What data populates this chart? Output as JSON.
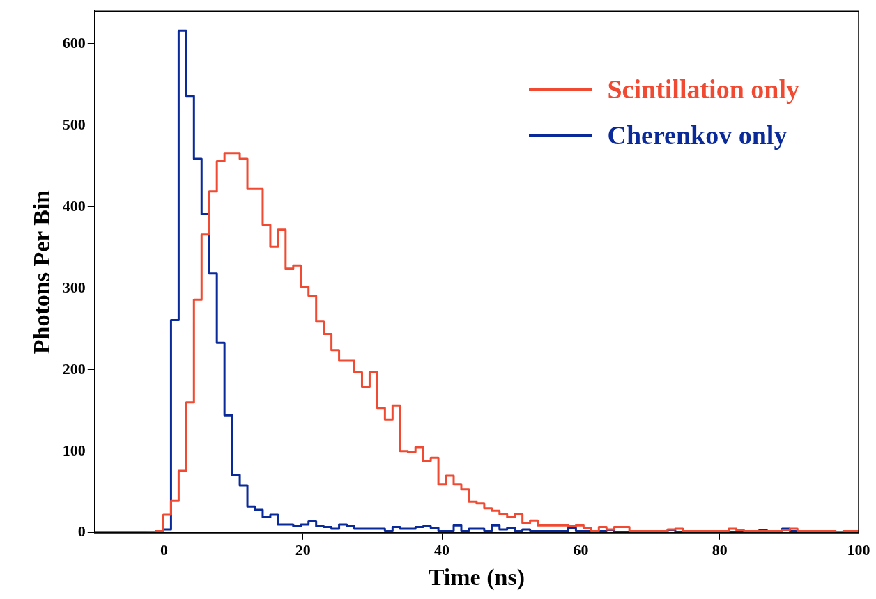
{
  "chart_data": {
    "type": "histogram",
    "xlabel": "Time (ns)",
    "ylabel": "Photons Per Bin",
    "bins": [
      -10,
      -8.9,
      -7.8,
      -6.7,
      -5.6,
      -4.5,
      -3.4,
      -2.3,
      -1.2,
      -0.1,
      1,
      2.1,
      3.2,
      4.3,
      5.4,
      6.5,
      7.6,
      8.7,
      9.8,
      10.9,
      12,
      13.1,
      14.2,
      15.3,
      16.4,
      17.5,
      18.6,
      19.7,
      20.8,
      21.9,
      23,
      24.1,
      25.2,
      26.3,
      27.4,
      28.5,
      29.6,
      30.7,
      31.8,
      32.9,
      34,
      35.1,
      36.2,
      37.3,
      38.4,
      39.5,
      40.6,
      41.7,
      42.8,
      43.9,
      45,
      46.1,
      47.2,
      48.3,
      49.4,
      50.5,
      51.6,
      52.7,
      53.8,
      54.9,
      56,
      57.1,
      58.2,
      59.3,
      60.4,
      61.5,
      62.6,
      63.7,
      64.8,
      65.9,
      67,
      68.1,
      69.2,
      70.3,
      71.4,
      72.5,
      73.6,
      74.7,
      75.8,
      76.9,
      78,
      79.1,
      80.2,
      81.3,
      82.4,
      83.5,
      84.6,
      85.7,
      86.8,
      87.9,
      89,
      90.1,
      91.2,
      92.3,
      93.4,
      94.5,
      95.6,
      96.7,
      97.8,
      98.9,
      100
    ],
    "series": [
      {
        "name": "Scintillation only",
        "color": "#f04b32",
        "values": [
          0,
          0,
          0,
          0,
          0,
          0,
          0,
          1,
          2,
          22,
          39,
          76,
          160,
          286,
          366,
          419,
          456,
          466,
          466,
          459,
          422,
          422,
          378,
          351,
          372,
          324,
          328,
          302,
          291,
          259,
          244,
          224,
          211,
          211,
          197,
          179,
          197,
          153,
          139,
          156,
          100,
          99,
          105,
          88,
          92,
          59,
          70,
          59,
          53,
          38,
          36,
          30,
          27,
          23,
          19,
          23,
          12,
          15,
          9,
          9,
          9,
          9,
          8,
          9,
          6,
          2,
          7,
          4,
          7,
          7,
          2,
          2,
          2,
          2,
          2,
          4,
          5,
          2,
          2,
          2,
          2,
          2,
          2,
          5,
          3,
          2,
          2,
          2,
          2,
          2,
          3,
          5,
          2,
          2,
          2,
          2,
          2,
          1,
          2,
          2
        ]
      },
      {
        "name": "Cherenkov only",
        "color": "#0b2a99",
        "values": [
          0,
          0,
          0,
          0,
          0,
          0,
          0,
          0,
          2,
          4,
          261,
          616,
          536,
          459,
          391,
          318,
          233,
          144,
          71,
          58,
          32,
          28,
          19,
          22,
          10,
          10,
          8,
          10,
          14,
          8,
          7,
          5,
          10,
          8,
          5,
          5,
          5,
          5,
          2,
          7,
          5,
          5,
          7,
          8,
          6,
          2,
          2,
          9,
          2,
          5,
          5,
          2,
          9,
          4,
          6,
          2,
          4,
          2,
          2,
          2,
          2,
          2,
          6,
          2,
          2,
          2,
          2,
          3,
          1,
          1,
          1,
          1,
          1,
          2,
          1,
          3,
          1,
          1,
          1,
          1,
          1,
          1,
          1,
          1,
          1,
          2,
          2,
          3,
          2,
          2,
          5,
          2,
          1,
          1,
          1,
          1,
          1,
          1,
          1,
          1
        ]
      }
    ],
    "xlim": [
      -10,
      100
    ],
    "xticks": [
      0,
      20,
      40,
      60,
      80,
      100
    ],
    "ylim": [
      0,
      640
    ],
    "yticks": [
      0,
      100,
      200,
      300,
      400,
      500,
      600
    ],
    "grid": false,
    "legend": "top right"
  }
}
